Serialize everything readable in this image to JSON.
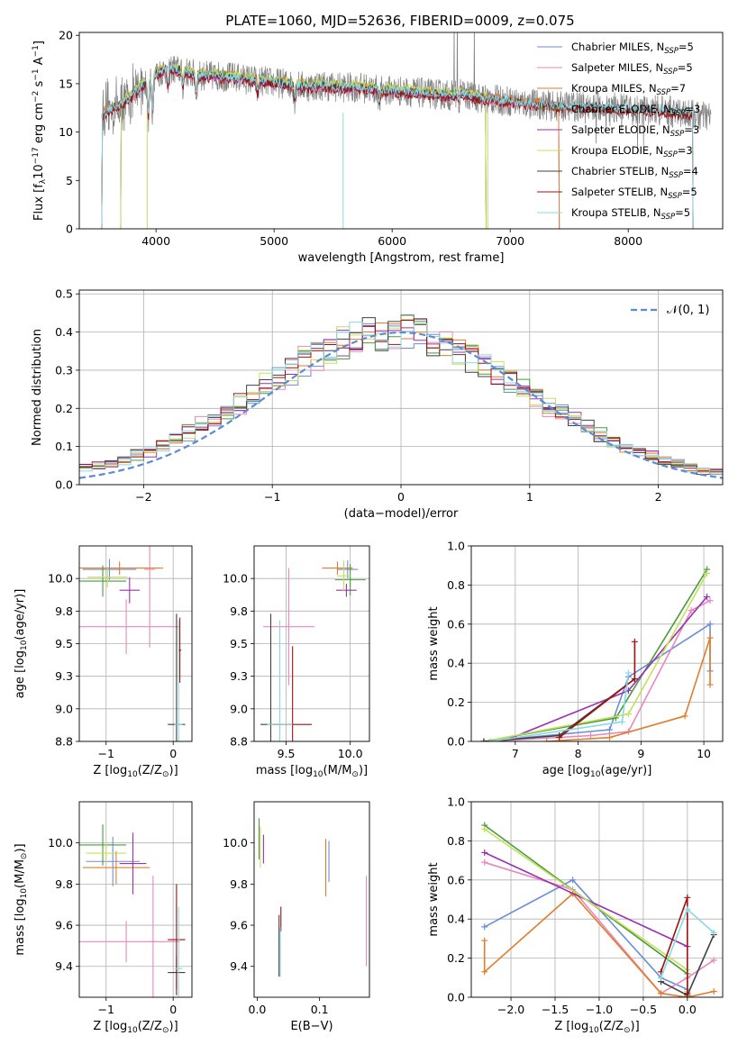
{
  "figure_title": "PLATE=1060, MJD=52636, FIBERID=0009, z=0.075",
  "colors": {
    "chabrier_miles": "#6a8fd6",
    "salpeter_miles": "#e888bd",
    "kroupa_miles": "#e07d2a",
    "chabrier_elodie": "#4a9a3e",
    "salpeter_elodie": "#9b30b0",
    "kroupa_elodie": "#c4e05a",
    "chabrier_stelib": "#404040",
    "salpeter_stelib": "#a01010",
    "kroupa_stelib": "#8ad8e0",
    "data": "#808080",
    "gaussian": "#5b8bd6"
  },
  "chart_data": [
    {
      "id": "spectrum",
      "type": "line",
      "xlabel": "wavelength [Angstrom, rest frame]",
      "ylabel": "Flux [f$_\\lambda$10$^{-17}$ erg cm$^{-2}$ s$^{-1}$ A$^{-1}$]",
      "xlim": [
        3350,
        8800
      ],
      "ylim": [
        0,
        20.3
      ],
      "xticks": [
        4000,
        5000,
        6000,
        7000,
        8000
      ],
      "yticks": [
        0,
        5,
        10,
        15,
        20
      ],
      "grid": false,
      "legend_position": "top-right",
      "legend": [
        {
          "main": "Chabrier MILES, N",
          "sub": "SSP",
          "tail": "=5"
        },
        {
          "main": "Salpeter MILES, N",
          "sub": "SSP",
          "tail": "=5"
        },
        {
          "main": "Kroupa MILES, N",
          "sub": "SSP",
          "tail": "=7"
        },
        {
          "main": "Chabrier ELODIE, N",
          "sub": "SSP",
          "tail": "=3"
        },
        {
          "main": "Salpeter ELODIE, N",
          "sub": "SSP",
          "tail": "=3"
        },
        {
          "main": "Kroupa ELODIE, N",
          "sub": "SSP",
          "tail": "=3"
        },
        {
          "main": "Chabrier STELIB, N",
          "sub": "SSP",
          "tail": "=4"
        },
        {
          "main": "Salpeter STELIB, N",
          "sub": "SSP",
          "tail": "=5"
        },
        {
          "main": "Kroupa STELIB, N",
          "sub": "SSP",
          "tail": "=5"
        }
      ],
      "data_x": [
        3540,
        3600,
        3700,
        3800,
        3900,
        4000,
        4100,
        4200,
        4300,
        4400,
        4500,
        4600,
        4700,
        4800,
        4900,
        5000,
        5100,
        5200,
        5300,
        5400,
        5500,
        5600,
        5700,
        5800,
        5900,
        6000,
        6100,
        6200,
        6300,
        6400,
        6500,
        6600,
        6700,
        6800,
        6900,
        7000,
        7100,
        7200,
        7300,
        7400,
        7500,
        7600,
        7700,
        7800,
        7900,
        8000,
        8100,
        8200,
        8300,
        8400,
        8500,
        8600,
        8700
      ],
      "model_y": [
        11.8,
        12.3,
        12.8,
        13.8,
        15.0,
        16.0,
        16.6,
        16.4,
        16.0,
        15.8,
        15.8,
        15.7,
        15.6,
        15.4,
        15.3,
        15.1,
        15.0,
        14.8,
        14.7,
        14.8,
        14.7,
        14.6,
        14.6,
        14.5,
        14.3,
        14.3,
        14.2,
        14.1,
        14.0,
        13.9,
        13.8,
        14.0,
        13.6,
        13.4,
        13.3,
        13.2,
        13.0,
        12.9,
        12.8,
        12.6,
        12.7,
        12.6,
        12.7,
        12.6,
        12.5,
        12.3,
        12.2,
        12.3,
        12.2,
        12.1,
        12.0,
        11.6,
        11.6
      ],
      "model_cutoffs": {
        "MILES_end": 7420,
        "ELODIE_end": 6800,
        "STELIB_end": 8550,
        "STELIB_start": 3540
      }
    },
    {
      "id": "residuals",
      "type": "area",
      "xlabel": "(data-model)/error",
      "ylabel": "Normed distribution",
      "xlim": [
        -2.5,
        2.5
      ],
      "ylim": [
        0,
        0.51
      ],
      "xticks": [
        -2,
        -1,
        0,
        1,
        2
      ],
      "yticks": [
        0.0,
        0.1,
        0.2,
        0.3,
        0.4,
        0.5
      ],
      "grid": true,
      "legend_position": "top-right",
      "legend": [
        {
          "label": "$\\mathcal{N}(0, 1)$"
        }
      ],
      "bin_centers": [
        -2.45,
        -2.35,
        -2.25,
        -2.15,
        -2.05,
        -1.95,
        -1.85,
        -1.75,
        -1.65,
        -1.55,
        -1.45,
        -1.35,
        -1.25,
        -1.15,
        -1.05,
        -0.95,
        -0.85,
        -0.75,
        -0.65,
        -0.55,
        -0.45,
        -0.35,
        -0.25,
        -0.15,
        -0.05,
        0.05,
        0.15,
        0.25,
        0.35,
        0.45,
        0.55,
        0.65,
        0.75,
        0.85,
        0.95,
        1.05,
        1.15,
        1.25,
        1.35,
        1.45,
        1.55,
        1.65,
        1.75,
        1.85,
        1.95,
        2.05,
        2.15,
        2.25,
        2.35,
        2.45
      ],
      "hist_mean": [
        0.04,
        0.048,
        0.057,
        0.066,
        0.078,
        0.09,
        0.103,
        0.118,
        0.135,
        0.153,
        0.173,
        0.193,
        0.213,
        0.236,
        0.258,
        0.28,
        0.301,
        0.321,
        0.34,
        0.357,
        0.372,
        0.384,
        0.393,
        0.399,
        0.4,
        0.398,
        0.392,
        0.382,
        0.37,
        0.355,
        0.338,
        0.318,
        0.297,
        0.275,
        0.253,
        0.23,
        0.208,
        0.187,
        0.167,
        0.148,
        0.13,
        0.114,
        0.1,
        0.087,
        0.075,
        0.065,
        0.055,
        0.047,
        0.04,
        0.034
      ]
    },
    {
      "id": "age-vs-Z",
      "type": "scatter",
      "xlabel": "Z [log$_{10}$(Z/Z$_\\odot$)]",
      "ylabel": "age  [log$_{10}$(age/yr)]",
      "xlim": [
        -1.4,
        0.28
      ],
      "ylim": [
        8.75,
        10.25
      ],
      "xticks": [
        -1,
        0
      ],
      "yticks": [
        8.75,
        9.0,
        9.25,
        9.5,
        9.75,
        10.0
      ],
      "grid": true,
      "points": [
        {
          "model": "chabrier_miles",
          "x": -0.95,
          "xerr": 0.4,
          "y": 10.07,
          "yerr": 0.08
        },
        {
          "model": "salpeter_miles",
          "x": -0.7,
          "xerr": 0.8,
          "y": 9.63,
          "yerr": 0.21
        },
        {
          "model": "salpeter_miles",
          "x": -0.35,
          "xerr": 0.08,
          "y": 10.07,
          "yerr": 0.6
        },
        {
          "model": "kroupa_miles",
          "x": -0.8,
          "xerr": 0.65,
          "y": 10.08,
          "yerr": 0.05
        },
        {
          "model": "chabrier_elodie",
          "x": -1.05,
          "xerr": 0.35,
          "y": 9.98,
          "yerr": 0.12
        },
        {
          "model": "salpeter_elodie",
          "x": -0.65,
          "xerr": 0.15,
          "y": 9.91,
          "yerr": 0.1
        },
        {
          "model": "kroupa_elodie",
          "x": -0.98,
          "xerr": 0.3,
          "y": 10.01,
          "yerr": 0.08
        },
        {
          "model": "chabrier_stelib",
          "x": 0.05,
          "xerr": 0.13,
          "y": 8.88,
          "yerr": 0.85
        },
        {
          "model": "salpeter_stelib",
          "x": 0.1,
          "xerr": 0.02,
          "y": 9.45,
          "yerr": 0.25
        },
        {
          "model": "kroupa_stelib",
          "x": 0.08,
          "xerr": 0.06,
          "y": 8.88,
          "yerr": 0.8
        }
      ]
    },
    {
      "id": "age-vs-mass",
      "type": "scatter",
      "xlabel": "mass [log$_{10}$(M/M$_\\odot$)]",
      "ylabel": "",
      "xlim": [
        9.25,
        10.15
      ],
      "ylim": [
        8.75,
        10.25
      ],
      "xticks": [
        9.5,
        10.0
      ],
      "yticks": [
        8.75,
        9.0,
        9.25,
        9.5,
        9.75,
        10.0
      ],
      "grid": true,
      "points": [
        {
          "model": "chabrier_miles",
          "x": 9.98,
          "xerr": 0.08,
          "y": 10.07,
          "yerr": 0.07
        },
        {
          "model": "salpeter_miles",
          "x": 9.52,
          "xerr": 0.2,
          "y": 9.63,
          "yerr": 0.45
        },
        {
          "model": "kroupa_miles",
          "x": 9.9,
          "xerr": 0.12,
          "y": 10.08,
          "yerr": 0.05
        },
        {
          "model": "chabrier_elodie",
          "x": 10.0,
          "xerr": 0.12,
          "y": 9.99,
          "yerr": 0.12
        },
        {
          "model": "salpeter_elodie",
          "x": 9.97,
          "xerr": 0.08,
          "y": 9.91,
          "yerr": 0.05
        },
        {
          "model": "kroupa_elodie",
          "x": 9.95,
          "xerr": 0.05,
          "y": 10.02,
          "yerr": 0.12
        },
        {
          "model": "chabrier_stelib",
          "x": 9.38,
          "xerr": 0.08,
          "y": 8.88,
          "yerr": 0.85
        },
        {
          "model": "salpeter_stelib",
          "x": 9.55,
          "xerr": 0.15,
          "y": 8.88,
          "yerr": 0.6
        },
        {
          "model": "kroupa_stelib",
          "x": 9.45,
          "xerr": 0.1,
          "y": 8.88,
          "yerr": 0.8
        }
      ]
    },
    {
      "id": "weight-vs-age",
      "type": "line",
      "xlabel": "age  [log$_{10}$(age/yr)]",
      "ylabel": "mass weight",
      "xlim": [
        6.3,
        10.3
      ],
      "ylim": [
        0,
        1.0
      ],
      "xticks": [
        7,
        8,
        9,
        10
      ],
      "yticks": [
        0.0,
        0.2,
        0.4,
        0.6,
        0.8,
        1.0
      ],
      "grid": true,
      "series": [
        {
          "model": "chabrier_miles",
          "x": [
            6.5,
            8.5,
            8.8,
            10.1,
            10.1
          ],
          "y": [
            0.0,
            0.06,
            0.33,
            0.6,
            0.36
          ]
        },
        {
          "model": "salpeter_miles",
          "x": [
            6.6,
            8.2,
            8.8,
            9.8,
            10.1
          ],
          "y": [
            0.0,
            0.03,
            0.05,
            0.67,
            0.72
          ]
        },
        {
          "model": "kroupa_miles",
          "x": [
            7.5,
            8.5,
            9.7,
            10.1,
            10.1
          ],
          "y": [
            0.0,
            0.02,
            0.13,
            0.53,
            0.29
          ]
        },
        {
          "model": "chabrier_elodie",
          "x": [
            6.5,
            8.6,
            10.05
          ],
          "y": [
            0.0,
            0.12,
            0.88
          ]
        },
        {
          "model": "salpeter_elodie",
          "x": [
            6.8,
            8.8,
            10.05
          ],
          "y": [
            0.0,
            0.26,
            0.74
          ]
        },
        {
          "model": "kroupa_elodie",
          "x": [
            6.5,
            8.8,
            10.05
          ],
          "y": [
            0.0,
            0.14,
            0.86
          ]
        },
        {
          "model": "chabrier_stelib",
          "x": [
            6.5,
            7.7,
            8.9
          ],
          "y": [
            0.0,
            0.03,
            0.32
          ]
        },
        {
          "model": "salpeter_stelib",
          "x": [
            7.7,
            8.9,
            8.9
          ],
          "y": [
            0.02,
            0.32,
            0.51
          ]
        },
        {
          "model": "kroupa_stelib",
          "x": [
            6.6,
            8.7,
            8.8
          ],
          "y": [
            0.0,
            0.1,
            0.35
          ]
        }
      ]
    },
    {
      "id": "mass-vs-Z",
      "type": "scatter",
      "xlabel": "Z [log$_{10}$(Z/Z$_\\odot$)]",
      "ylabel": "mass [log$_{10}$(M/M$_\\odot$)]",
      "xlim": [
        -1.4,
        0.28
      ],
      "ylim": [
        9.25,
        10.2
      ],
      "xticks": [
        -1,
        0
      ],
      "yticks": [
        9.4,
        9.6,
        9.8,
        10.0
      ],
      "grid": true,
      "points": [
        {
          "model": "chabrier_miles",
          "x": -0.9,
          "xerr": 0.4,
          "y": 9.91,
          "yerr": 0.12
        },
        {
          "model": "salpeter_miles",
          "x": -0.7,
          "xerr": 0.8,
          "y": 9.52,
          "yerr": 0.1
        },
        {
          "model": "salpeter_miles",
          "x": -0.3,
          "xerr": 0.05,
          "y": 9.52,
          "yerr": 0.32
        },
        {
          "model": "kroupa_miles",
          "x": -0.85,
          "xerr": 0.5,
          "y": 9.88,
          "yerr": 0.08
        },
        {
          "model": "chabrier_elodie",
          "x": -1.05,
          "xerr": 0.35,
          "y": 9.99,
          "yerr": 0.1
        },
        {
          "model": "salpeter_elodie",
          "x": -0.6,
          "xerr": 0.2,
          "y": 9.9,
          "yerr": 0.15
        },
        {
          "model": "kroupa_elodie",
          "x": -1.0,
          "xerr": 0.3,
          "y": 9.95,
          "yerr": 0.05
        },
        {
          "model": "chabrier_stelib",
          "x": 0.05,
          "xerr": 0.13,
          "y": 9.37,
          "yerr": 0.08
        },
        {
          "model": "salpeter_stelib",
          "x": 0.05,
          "xerr": 0.13,
          "y": 9.53,
          "yerr": 0.27
        },
        {
          "model": "kroupa_stelib",
          "x": 0.08,
          "xerr": 0.06,
          "y": 9.39,
          "yerr": 0.3
        }
      ]
    },
    {
      "id": "mass-vs-EBV",
      "type": "scatter",
      "xlabel": "E(B-V)",
      "ylabel": "",
      "xlim": [
        -0.005,
        0.18
      ],
      "ylim": [
        9.25,
        10.2
      ],
      "xticks": [
        0.0,
        0.1
      ],
      "yticks": [
        9.4,
        9.6,
        9.8,
        10.0
      ],
      "grid": false,
      "points": [
        {
          "model": "chabrier_miles",
          "x": 0.115,
          "xerr": 0,
          "y": 9.91,
          "yerr": 0.1
        },
        {
          "model": "salpeter_miles",
          "x": 0.175,
          "xerr": 0,
          "y": 9.62,
          "yerr": 0.22
        },
        {
          "model": "kroupa_miles",
          "x": 0.11,
          "xerr": 0,
          "y": 9.88,
          "yerr": 0.14
        },
        {
          "model": "chabrier_elodie",
          "x": 0.003,
          "xerr": 0,
          "y": 10.02,
          "yerr": 0.1
        },
        {
          "model": "salpeter_elodie",
          "x": 0.01,
          "xerr": 0,
          "y": 9.97,
          "yerr": 0.07
        },
        {
          "model": "kroupa_elodie",
          "x": 0.005,
          "xerr": 0,
          "y": 9.98,
          "yerr": 0.1
        },
        {
          "model": "chabrier_stelib",
          "x": 0.035,
          "xerr": 0,
          "y": 9.5,
          "yerr": 0.15
        },
        {
          "model": "salpeter_stelib",
          "x": 0.038,
          "xerr": 0,
          "y": 9.63,
          "yerr": 0.06
        },
        {
          "model": "kroupa_stelib",
          "x": 0.037,
          "xerr": 0,
          "y": 9.47,
          "yerr": 0.12
        }
      ]
    },
    {
      "id": "weight-vs-Z",
      "type": "line",
      "xlabel": "Z [log$_{10}$(Z/Z$_\\odot$)]",
      "ylabel": "mass weight",
      "xlim": [
        -2.45,
        0.4
      ],
      "ylim": [
        0,
        1.0
      ],
      "xticks": [
        -2.0,
        -1.5,
        -1.0,
        -0.5,
        0.0
      ],
      "yticks": [
        0.0,
        0.2,
        0.4,
        0.6,
        0.8,
        1.0
      ],
      "grid": true,
      "series": [
        {
          "model": "chabrier_miles",
          "x": [
            -2.3,
            -1.3,
            -0.3,
            0.0
          ],
          "y": [
            0.36,
            0.6,
            0.1,
            0.04
          ]
        },
        {
          "model": "salpeter_miles",
          "x": [
            -2.3,
            -1.3,
            -0.3,
            0.0,
            0.3
          ],
          "y": [
            0.69,
            0.55,
            0.02,
            0.1,
            0.19
          ]
        },
        {
          "model": "kroupa_miles",
          "x": [
            -2.3,
            -2.3,
            -1.3,
            -0.3,
            0.0,
            0.3
          ],
          "y": [
            0.29,
            0.13,
            0.53,
            0.02,
            0.0,
            0.03
          ]
        },
        {
          "model": "chabrier_elodie",
          "x": [
            -2.3,
            0.0,
            0.0
          ],
          "y": [
            0.88,
            0.12,
            0.03
          ]
        },
        {
          "model": "salpeter_elodie",
          "x": [
            -2.3,
            0.0
          ],
          "y": [
            0.74,
            0.26
          ]
        },
        {
          "model": "kroupa_elodie",
          "x": [
            -2.3,
            0.0,
            0.0
          ],
          "y": [
            0.86,
            0.14,
            0.03
          ]
        },
        {
          "model": "chabrier_stelib",
          "x": [
            -0.3,
            0.0,
            0.3
          ],
          "y": [
            0.08,
            0.01,
            0.32
          ]
        },
        {
          "model": "salpeter_stelib",
          "x": [
            -0.3,
            0.0,
            0.0
          ],
          "y": [
            0.13,
            0.51,
            0.02
          ]
        },
        {
          "model": "kroupa_stelib",
          "x": [
            -0.3,
            0.0,
            0.3
          ],
          "y": [
            0.1,
            0.45,
            0.33
          ]
        }
      ]
    }
  ]
}
